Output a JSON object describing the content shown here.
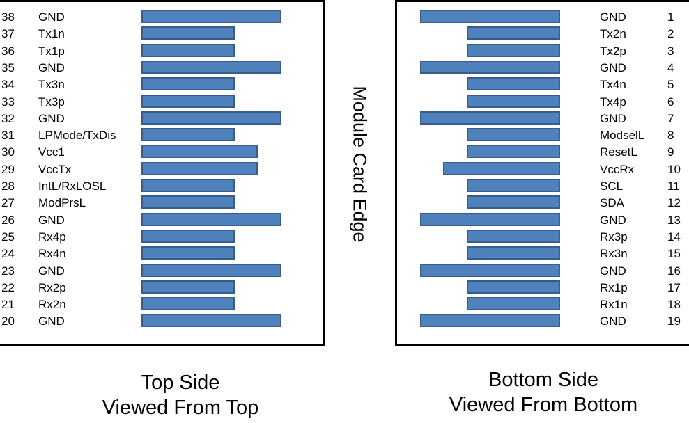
{
  "edge_label": "Module Card Edge",
  "top_side": {
    "caption_line1": "Top Side",
    "caption_line2": "Viewed From Top",
    "pins": [
      {
        "num": "38",
        "name": "GND",
        "pad": "long"
      },
      {
        "num": "37",
        "name": "Tx1n",
        "pad": "short"
      },
      {
        "num": "36",
        "name": "Tx1p",
        "pad": "short"
      },
      {
        "num": "35",
        "name": "GND",
        "pad": "long"
      },
      {
        "num": "34",
        "name": "Tx3n",
        "pad": "short"
      },
      {
        "num": "33",
        "name": "Tx3p",
        "pad": "short"
      },
      {
        "num": "32",
        "name": "GND",
        "pad": "long"
      },
      {
        "num": "31",
        "name": "LPMode/TxDis",
        "pad": "short"
      },
      {
        "num": "30",
        "name": "Vcc1",
        "pad": "medium"
      },
      {
        "num": "29",
        "name": "VccTx",
        "pad": "medium"
      },
      {
        "num": "28",
        "name": "IntL/RxLOSL",
        "pad": "short"
      },
      {
        "num": "27",
        "name": "ModPrsL",
        "pad": "short"
      },
      {
        "num": "26",
        "name": "GND",
        "pad": "long"
      },
      {
        "num": "25",
        "name": "Rx4p",
        "pad": "short"
      },
      {
        "num": "24",
        "name": "Rx4n",
        "pad": "short"
      },
      {
        "num": "23",
        "name": "GND",
        "pad": "long"
      },
      {
        "num": "22",
        "name": "Rx2p",
        "pad": "short"
      },
      {
        "num": "21",
        "name": "Rx2n",
        "pad": "short"
      },
      {
        "num": "20",
        "name": "GND",
        "pad": "long"
      }
    ]
  },
  "bottom_side": {
    "caption_line1": "Bottom Side",
    "caption_line2": "Viewed From Bottom",
    "pins": [
      {
        "num": "1",
        "name": "GND",
        "pad": "long"
      },
      {
        "num": "2",
        "name": "Tx2n",
        "pad": "short"
      },
      {
        "num": "3",
        "name": "Tx2p",
        "pad": "short"
      },
      {
        "num": "4",
        "name": "GND",
        "pad": "long"
      },
      {
        "num": "5",
        "name": "Tx4n",
        "pad": "short"
      },
      {
        "num": "6",
        "name": "Tx4p",
        "pad": "short"
      },
      {
        "num": "7",
        "name": "GND",
        "pad": "long"
      },
      {
        "num": "8",
        "name": "ModselL",
        "pad": "short"
      },
      {
        "num": "9",
        "name": "ResetL",
        "pad": "short"
      },
      {
        "num": "10",
        "name": "VccRx",
        "pad": "medium"
      },
      {
        "num": "11",
        "name": "SCL",
        "pad": "short"
      },
      {
        "num": "12",
        "name": "SDA",
        "pad": "short"
      },
      {
        "num": "13",
        "name": "GND",
        "pad": "long"
      },
      {
        "num": "14",
        "name": "Rx3p",
        "pad": "short"
      },
      {
        "num": "15",
        "name": "Rx3n",
        "pad": "short"
      },
      {
        "num": "16",
        "name": "GND",
        "pad": "long"
      },
      {
        "num": "17",
        "name": "Rx1p",
        "pad": "short"
      },
      {
        "num": "18",
        "name": "Rx1n",
        "pad": "short"
      },
      {
        "num": "19",
        "name": "GND",
        "pad": "long"
      }
    ]
  },
  "colors": {
    "pad_fill": "#4f81bd",
    "pad_border": "#385d8a"
  }
}
